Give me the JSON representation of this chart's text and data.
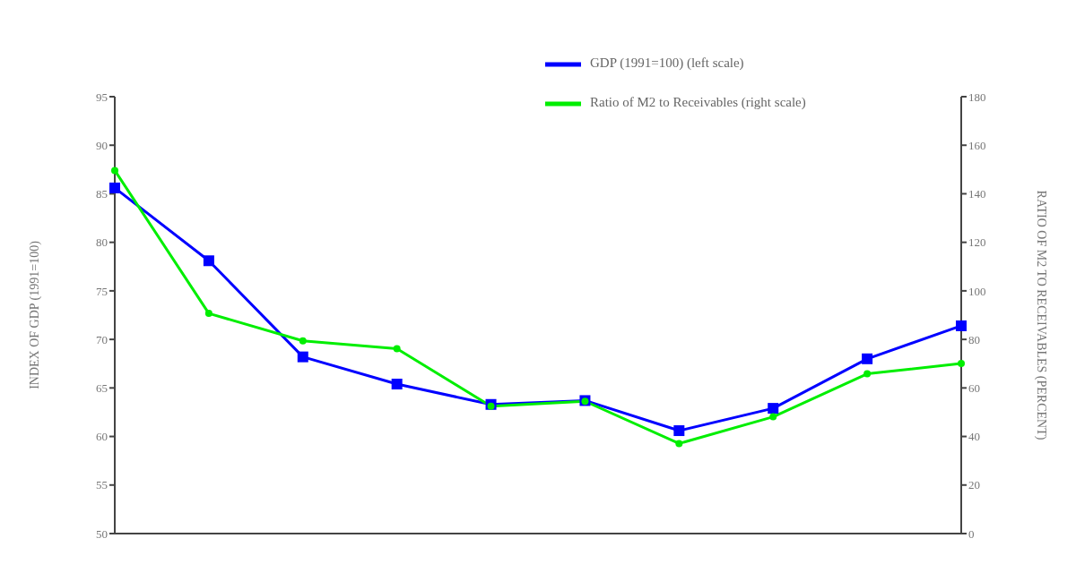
{
  "chart_data": {
    "type": "line",
    "categories": [
      null,
      null,
      null,
      null,
      null,
      null,
      null,
      null,
      null,
      null
    ],
    "series": [
      {
        "name": "GDP (1991=100) (left scale)",
        "color": "#0000ff",
        "marker": "square",
        "values": [
          85.6,
          78.1,
          68.2,
          65.4,
          63.3,
          63.7,
          60.6,
          62.9,
          68.0,
          71.4
        ]
      },
      {
        "name": "Ratio of M2 to Receivables (right scale)",
        "color": "#00ee00",
        "marker": "circle",
        "axis": "y2",
        "values": [
          149.6,
          90.7,
          79.4,
          76.2,
          52.5,
          54.5,
          37.1,
          48.1,
          65.8,
          70.1
        ]
      }
    ],
    "ylabel": "INDEX OF GDP (1991=100)",
    "y2label": "RATIO OF M2 TO RECEIVABLES (PERCENT)",
    "ylim": [
      50,
      95
    ],
    "yticks": [
      50,
      55,
      60,
      65,
      70,
      75,
      80,
      85,
      90,
      95
    ],
    "y2lim": [
      0,
      180
    ],
    "y2ticks": [
      0,
      20,
      40,
      60,
      80,
      100,
      120,
      140,
      160,
      180
    ],
    "legend": "top right",
    "grid": false,
    "tick_labels": "y"
  }
}
